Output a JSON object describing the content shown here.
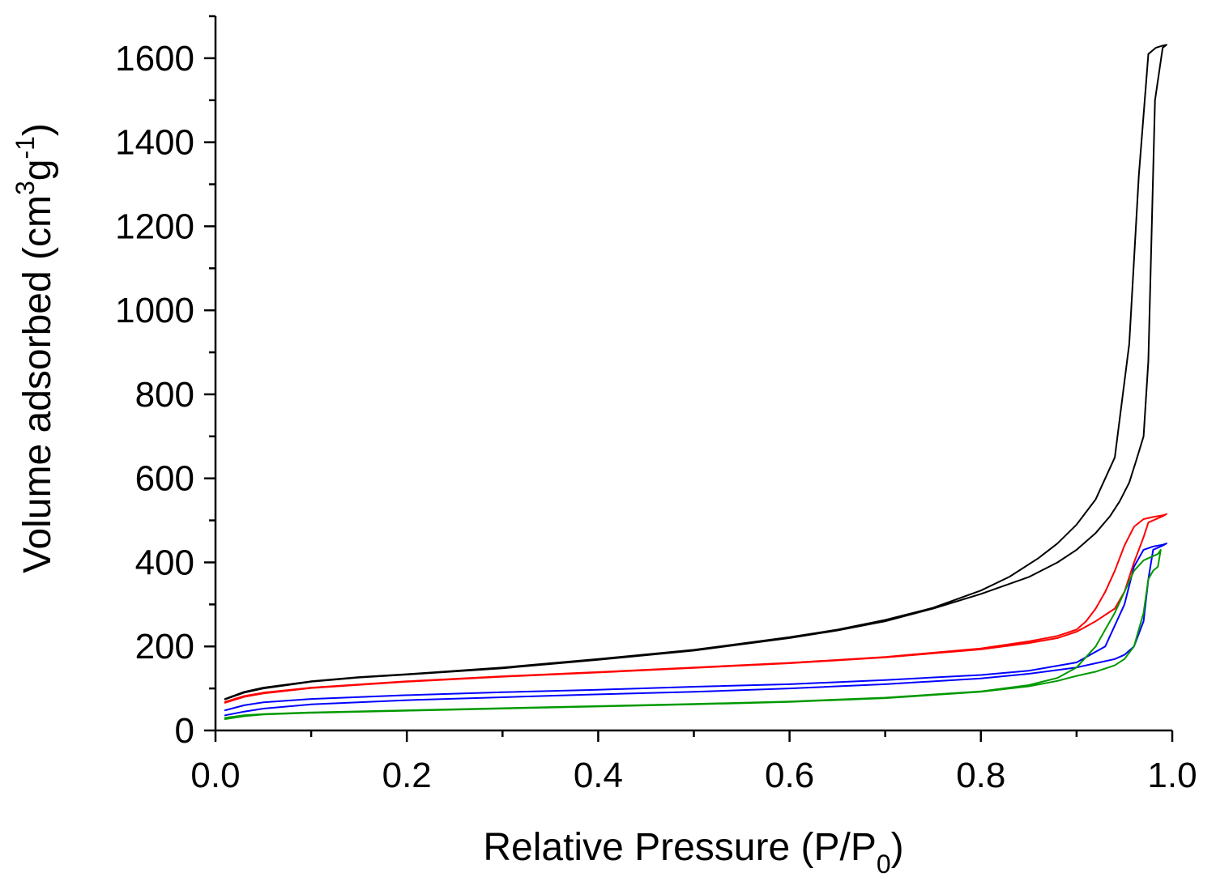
{
  "chart_data": {
    "type": "line",
    "title": "",
    "xlabel": "Relative Pressure (P/P",
    "xlabel_sub": "0",
    "xlabel_end": ")",
    "ylabel": "Volume adsorbed (cm",
    "ylabel_sup1": "3",
    "ylabel_mid": "g",
    "ylabel_sup2": "-1",
    "ylabel_end": ")",
    "xlim": [
      0.0,
      1.0
    ],
    "ylim": [
      0,
      1700
    ],
    "x_ticks": [
      0.0,
      0.2,
      0.4,
      0.6,
      0.8,
      1.0
    ],
    "x_tick_labels": [
      "0.0",
      "0.2",
      "0.4",
      "0.6",
      "0.8",
      "1.0"
    ],
    "y_ticks": [
      0,
      200,
      400,
      600,
      800,
      1000,
      1200,
      1400,
      1600
    ],
    "y_tick_labels": [
      "0",
      "200",
      "400",
      "600",
      "800",
      "1000",
      "1200",
      "1400",
      "1600"
    ],
    "grid": false,
    "legend": "none",
    "series": [
      {
        "name": "black",
        "color": "#000000",
        "x": [
          0.01,
          0.03,
          0.05,
          0.1,
          0.15,
          0.2,
          0.3,
          0.4,
          0.5,
          0.6,
          0.65,
          0.7,
          0.75,
          0.8,
          0.83,
          0.86,
          0.88,
          0.9,
          0.92,
          0.94,
          0.955,
          0.965,
          0.975,
          0.983,
          0.99,
          0.994,
          0.99,
          0.982,
          0.975,
          0.97,
          0.962,
          0.955,
          0.945,
          0.935,
          0.92,
          0.9,
          0.88,
          0.85,
          0.8,
          0.75,
          0.7,
          0.65,
          0.6,
          0.5,
          0.4,
          0.3,
          0.2,
          0.15,
          0.1,
          0.05,
          0.03,
          0.01
        ],
        "y": [
          75,
          92,
          102,
          117,
          127,
          134,
          150,
          170,
          192,
          222,
          240,
          263,
          292,
          333,
          366,
          410,
          445,
          490,
          550,
          650,
          920,
          1320,
          1610,
          1625,
          1630,
          1632,
          1625,
          1500,
          880,
          700,
          640,
          590,
          545,
          510,
          470,
          430,
          400,
          365,
          325,
          290,
          260,
          238,
          220,
          190,
          168,
          148,
          133,
          126,
          116,
          100,
          90,
          74
        ]
      },
      {
        "name": "red",
        "color": "#ff0000",
        "x": [
          0.01,
          0.03,
          0.05,
          0.1,
          0.2,
          0.3,
          0.4,
          0.5,
          0.6,
          0.7,
          0.8,
          0.85,
          0.88,
          0.9,
          0.91,
          0.92,
          0.93,
          0.94,
          0.95,
          0.96,
          0.97,
          0.98,
          0.99,
          0.994,
          0.99,
          0.98,
          0.975,
          0.97,
          0.96,
          0.95,
          0.94,
          0.92,
          0.9,
          0.88,
          0.85,
          0.8,
          0.7,
          0.6,
          0.5,
          0.4,
          0.3,
          0.2,
          0.1,
          0.05,
          0.03,
          0.01
        ],
        "y": [
          68,
          82,
          90,
          102,
          117,
          129,
          139,
          150,
          161,
          175,
          195,
          212,
          225,
          240,
          260,
          290,
          330,
          380,
          440,
          485,
          503,
          508,
          512,
          515,
          510,
          500,
          495,
          460,
          400,
          330,
          290,
          260,
          235,
          220,
          208,
          193,
          174,
          160,
          149,
          138,
          128,
          116,
          101,
          88,
          80,
          66
        ]
      },
      {
        "name": "blue",
        "color": "#0000ff",
        "x": [
          0.01,
          0.03,
          0.05,
          0.1,
          0.2,
          0.3,
          0.4,
          0.5,
          0.6,
          0.7,
          0.8,
          0.85,
          0.9,
          0.93,
          0.95,
          0.96,
          0.97,
          0.98,
          0.99,
          0.994,
          0.99,
          0.98,
          0.975,
          0.97,
          0.96,
          0.95,
          0.94,
          0.92,
          0.9,
          0.85,
          0.8,
          0.7,
          0.6,
          0.5,
          0.4,
          0.3,
          0.2,
          0.1,
          0.05,
          0.03,
          0.01
        ],
        "y": [
          48,
          60,
          67,
          75,
          84,
          91,
          97,
          104,
          110,
          120,
          132,
          142,
          162,
          200,
          300,
          390,
          430,
          438,
          442,
          445,
          440,
          430,
          360,
          260,
          200,
          180,
          170,
          160,
          150,
          135,
          124,
          110,
          100,
          92,
          86,
          79,
          72,
          62,
          52,
          45,
          36
        ]
      },
      {
        "name": "green",
        "color": "#009900",
        "x": [
          0.01,
          0.03,
          0.05,
          0.1,
          0.2,
          0.3,
          0.4,
          0.5,
          0.6,
          0.7,
          0.8,
          0.85,
          0.88,
          0.9,
          0.92,
          0.94,
          0.95,
          0.96,
          0.97,
          0.98,
          0.985,
          0.988,
          0.985,
          0.98,
          0.975,
          0.97,
          0.96,
          0.95,
          0.94,
          0.92,
          0.9,
          0.88,
          0.85,
          0.8,
          0.7,
          0.6,
          0.5,
          0.4,
          0.3,
          0.2,
          0.1,
          0.05,
          0.03,
          0.01
        ],
        "y": [
          30,
          36,
          39,
          43,
          48,
          53,
          58,
          63,
          69,
          78,
          93,
          108,
          125,
          150,
          200,
          280,
          330,
          380,
          405,
          415,
          420,
          430,
          390,
          380,
          360,
          280,
          200,
          170,
          155,
          140,
          130,
          118,
          105,
          92,
          77,
          68,
          62,
          57,
          52,
          47,
          42,
          38,
          34,
          27
        ]
      }
    ]
  }
}
